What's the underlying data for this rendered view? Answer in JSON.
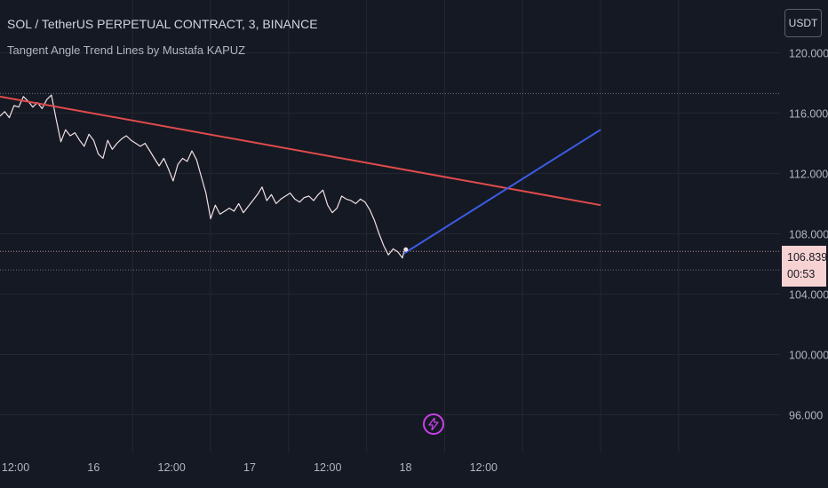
{
  "header": {
    "title": "SOL / TetherUS PERPETUAL CONTRACT, 3, BINANCE",
    "indicator": "Tangent Angle Trend Lines by Mustafa KAPUZ"
  },
  "toolbar": {
    "currency": "USDT"
  },
  "price_tag": {
    "price": "106.839",
    "countdown": "00:53"
  },
  "colors": {
    "background": "#151923",
    "price_line": "#f0e0e4",
    "downtrend": "#e04b4b",
    "uptrend": "#3b5ce4",
    "price_tag_bg": "#f7d2d2",
    "bolt": "#c840e9"
  },
  "icons": {
    "bolt": "lightning-bolt-icon"
  },
  "chart_data": {
    "type": "line",
    "y_axis": {
      "range": [
        93.5,
        123.5
      ],
      "tick_values": [
        96,
        100,
        104,
        108,
        112,
        116,
        120
      ],
      "tick_labels": [
        "96.000",
        "100.000",
        "104.000",
        "108.000",
        "112.000",
        "116.000",
        "120.000"
      ]
    },
    "x_axis": {
      "range": [
        -0.85,
        4.15
      ],
      "tick_values": [
        0,
        0.5,
        1,
        1.5,
        2,
        2.5,
        3,
        3.5
      ],
      "tick_labels": [
        "12:00",
        "16",
        "12:00",
        "17",
        "12:00",
        "18",
        "12:00"
      ],
      "label_positions": [
        -0.75,
        -0.25,
        0.25,
        0.75,
        1.25,
        1.75,
        2.25
      ]
    },
    "reference_lines": [
      {
        "y": 117.3,
        "style": "dotted"
      },
      {
        "y": 106.84,
        "style": "dotted",
        "color": "pink"
      },
      {
        "y": 105.6,
        "style": "dotted"
      }
    ],
    "series": [
      {
        "type": "line",
        "x": [
          -0.85,
          -0.82,
          -0.79,
          -0.76,
          -0.73,
          -0.7,
          -0.67,
          -0.64,
          -0.61,
          -0.58,
          -0.55,
          -0.52,
          -0.49,
          -0.46,
          -0.43,
          -0.4,
          -0.37,
          -0.34,
          -0.31,
          -0.28,
          -0.25,
          -0.22,
          -0.19,
          -0.16,
          -0.13,
          -0.1,
          -0.07,
          -0.04,
          -0.01,
          0.02,
          0.05,
          0.08,
          0.11,
          0.14,
          0.17,
          0.2,
          0.23,
          0.26,
          0.29,
          0.32,
          0.35,
          0.38,
          0.41,
          0.44,
          0.47,
          0.5,
          0.53,
          0.56,
          0.59,
          0.62,
          0.65,
          0.68,
          0.71,
          0.74,
          0.77,
          0.8,
          0.83,
          0.86,
          0.89,
          0.92,
          0.95,
          0.98,
          1.01,
          1.04,
          1.07,
          1.1,
          1.13,
          1.16,
          1.19,
          1.22,
          1.25,
          1.28,
          1.31,
          1.34,
          1.37,
          1.4,
          1.43,
          1.46,
          1.49,
          1.52,
          1.55,
          1.58,
          1.61,
          1.64,
          1.67,
          1.7,
          1.73,
          1.74
        ],
        "values": [
          115.8,
          116.1,
          115.7,
          116.5,
          116.4,
          117.1,
          116.8,
          116.4,
          116.7,
          116.3,
          116.9,
          117.2,
          115.6,
          114.1,
          114.9,
          114.5,
          114.7,
          114.2,
          113.8,
          114.6,
          114.2,
          113.3,
          113.0,
          114.2,
          113.6,
          114.0,
          114.3,
          114.5,
          114.2,
          114.0,
          113.8,
          114.0,
          113.5,
          113.0,
          112.5,
          113.0,
          112.3,
          111.5,
          112.6,
          113.0,
          112.8,
          113.5,
          112.9,
          111.8,
          110.7,
          109.0,
          109.9,
          109.3,
          109.5,
          109.7,
          109.5,
          110.0,
          109.4,
          109.8,
          110.2,
          110.6,
          111.1,
          110.2,
          110.6,
          110.0,
          110.3,
          110.5,
          110.7,
          110.3,
          110.1,
          110.4,
          110.5,
          110.2,
          110.6,
          110.9,
          109.9,
          109.4,
          109.7,
          110.5,
          110.3,
          110.2,
          110.0,
          110.3,
          110.1,
          109.6,
          108.9,
          108.0,
          107.2,
          106.6,
          107.0,
          106.8,
          106.4,
          106.84
        ]
      },
      {
        "type": "line",
        "role": "downtrend",
        "x": [
          -0.85,
          3.0
        ],
        "values": [
          117.1,
          109.9
        ]
      },
      {
        "type": "line",
        "role": "uptrend",
        "x": [
          1.74,
          3.0
        ],
        "values": [
          106.7,
          114.9
        ]
      }
    ]
  }
}
